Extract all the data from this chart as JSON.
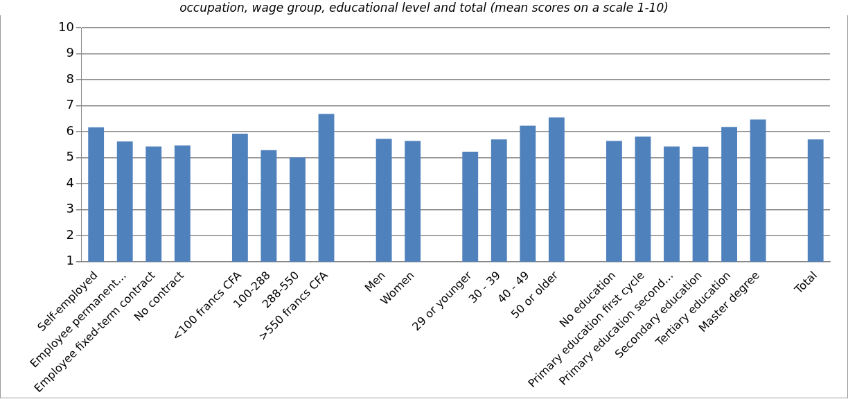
{
  "chart_data": {
    "type": "bar",
    "title": "occupation, wage group, educational level and total (mean scores on a scale 1-10)",
    "categories": [
      "Self-employed",
      "Employee permanent…",
      "Employee fixed-term contract",
      "No contract",
      null,
      "<100 francs CFA",
      "100-288",
      "288-550",
      ">550 francs CFA",
      null,
      "Men",
      "Women",
      null,
      "29 or younger",
      "30 - 39",
      "40 - 49",
      "50 or older",
      null,
      "No education",
      "Primary education first cycle",
      "Primary education second…",
      "Secondary education",
      "Tertiary education",
      "Master degree",
      null,
      "Total"
    ],
    "values": [
      6.17,
      5.62,
      5.43,
      5.47,
      null,
      5.92,
      5.29,
      5.01,
      6.68,
      null,
      5.72,
      5.64,
      null,
      5.23,
      5.7,
      6.23,
      6.55,
      null,
      5.64,
      5.81,
      5.43,
      5.42,
      6.18,
      6.47,
      null,
      5.7
    ],
    "color": "#4f81bd",
    "ylim": [
      1,
      10
    ],
    "yticks": [
      1,
      2,
      3,
      4,
      5,
      6,
      7,
      8,
      9,
      10
    ],
    "grid": "y",
    "legend": false
  }
}
